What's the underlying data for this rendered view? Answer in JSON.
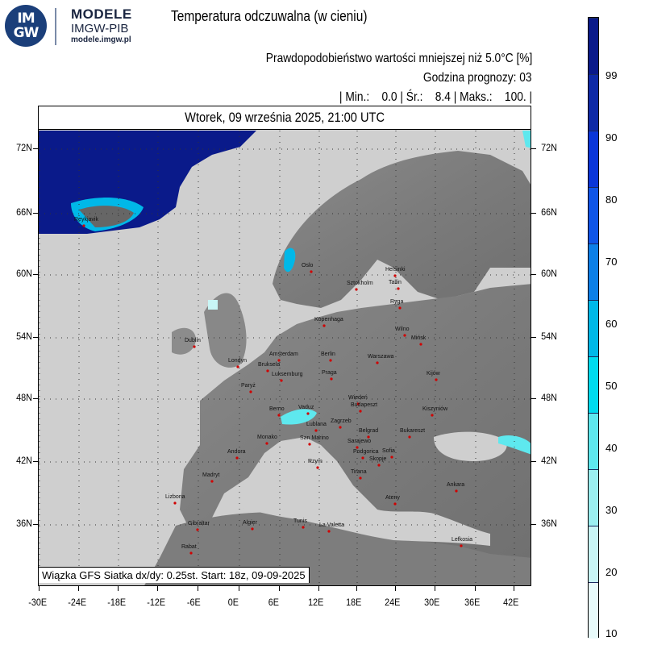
{
  "logo": {
    "line1": "IM",
    "line2": "GW",
    "brand": "MODELE",
    "sub": "IMGW-PIB",
    "url": "modele.imgw.pl"
  },
  "title": "Temperatura odczuwalna (w cieniu)",
  "probability_line": "Prawdopodobieństwo wartości mniejszej niż 5.0°C [%]",
  "forecast_hour_line": "Godzina prognozy: 03",
  "stats": {
    "min_label": "Min.:",
    "min": "0.0",
    "avg_label": "Śr.:",
    "avg": "8.4",
    "max_label": "Maks.:",
    "max": "100."
  },
  "date_band": "Wtorek, 09 września 2025, 21:00 UTC",
  "credit": "Wiązka GFS Siatka dx/dy: 0.25st. Start: 18z, 09-09-2025",
  "lat_labels": [
    "72N",
    "66N",
    "60N",
    "54N",
    "48N",
    "42N",
    "36N"
  ],
  "lon_labels": [
    "-30E",
    "-24E",
    "-18E",
    "-12E",
    "-6E",
    "0E",
    "6E",
    "12E",
    "18E",
    "24E",
    "30E",
    "36E",
    "42E"
  ],
  "colorbar": {
    "labels": [
      "99",
      "90",
      "80",
      "70",
      "60",
      "50",
      "40",
      "30",
      "20",
      "10"
    ],
    "colors": [
      "#0a1a8a",
      "#0e2aa6",
      "#0a36d8",
      "#0f55e8",
      "#0c7fe8",
      "#00b8e8",
      "#00dcef",
      "#5ee8ee",
      "#9beff0",
      "#c8f5f5",
      "#e8fbfb"
    ]
  },
  "cities": [
    "Oslo",
    "Sztokholm",
    "Helsinki",
    "Tallin",
    "Ryga",
    "Kopenhaga",
    "Wilno",
    "Mińsk",
    "Dublin",
    "Amsterdam",
    "Londyn",
    "Berlin",
    "Warszawa",
    "Bruksela",
    "Luksemburg",
    "Praga",
    "Kijów",
    "Paryż",
    "Wiedeń",
    "Budapeszt",
    "Berno",
    "Vaduz",
    "Kiszyniów",
    "Zagrzeb",
    "Lublana",
    "Belgrad",
    "Bukareszt",
    "Monako",
    "San Marino",
    "Sarajewo",
    "Andora",
    "Sofia",
    "Skopje",
    "Rzym",
    "Tirana",
    "Madryt",
    "Ateny",
    "Ankara",
    "Lizbona",
    "Algier",
    "Tunis",
    "Gibraltar",
    "La Valetta",
    "Rabat",
    "Lefkosia",
    "Reykjavik",
    "Podgorica"
  ]
}
